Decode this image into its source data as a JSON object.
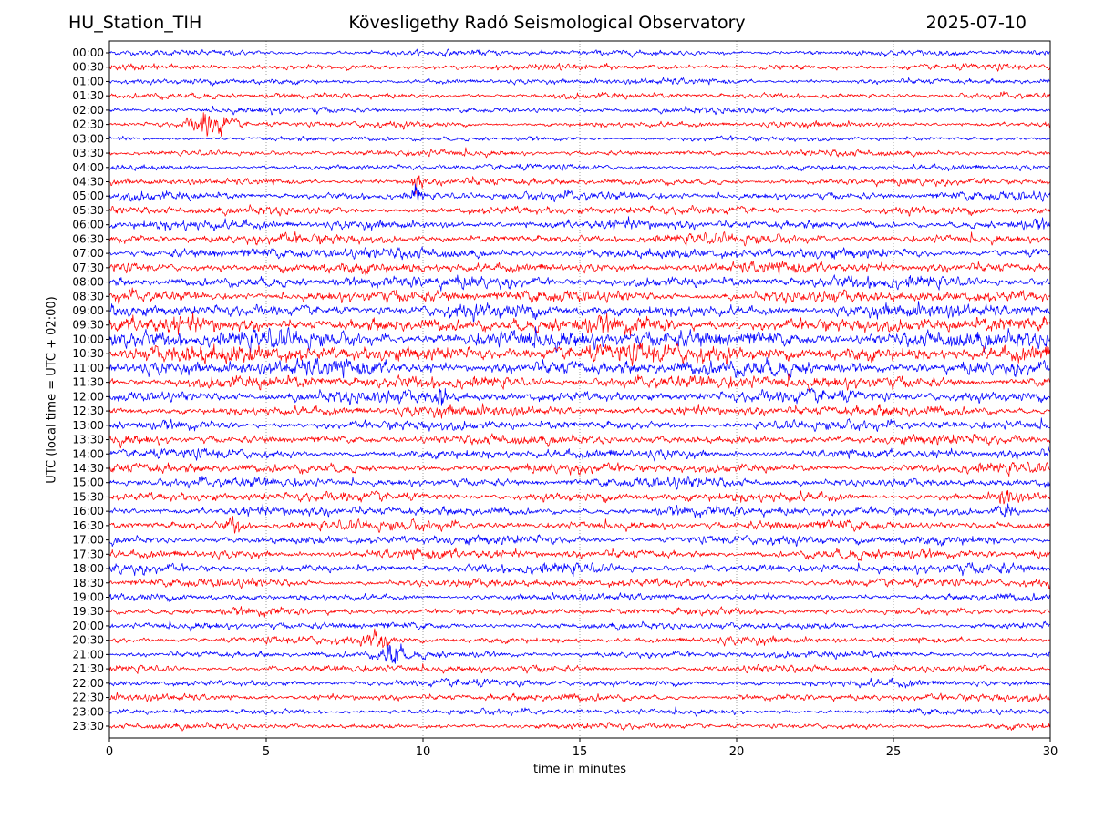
{
  "header": {
    "station": "HU_Station_TIH",
    "observatory": "Kövesligethy Radó Seismological Observatory",
    "date": "2025-07-10"
  },
  "chart_data": {
    "type": "line",
    "title": "Kövesligethy Radó Seismological Observatory",
    "xlabel": "time in minutes",
    "ylabel": "UTC (local time = UTC + 02:00)",
    "xlim": [
      0,
      30
    ],
    "xticks": [
      0,
      5,
      10,
      15,
      20,
      25,
      30
    ],
    "grid": true,
    "colors": [
      "#0000ff",
      "#ff0000"
    ],
    "rows": [
      "00:00",
      "00:30",
      "01:00",
      "01:30",
      "02:00",
      "02:30",
      "03:00",
      "03:30",
      "04:00",
      "04:30",
      "05:00",
      "05:30",
      "06:00",
      "06:30",
      "07:00",
      "07:30",
      "08:00",
      "08:30",
      "09:00",
      "09:30",
      "10:00",
      "10:30",
      "11:00",
      "11:30",
      "12:00",
      "12:30",
      "13:00",
      "13:30",
      "14:00",
      "14:30",
      "15:00",
      "15:30",
      "16:00",
      "16:30",
      "17:00",
      "17:30",
      "18:00",
      "18:30",
      "19:00",
      "19:30",
      "20:00",
      "20:30",
      "21:00",
      "21:30",
      "22:00",
      "22:30",
      "23:00",
      "23:30"
    ],
    "noise_level": [
      0.5,
      0.5,
      0.5,
      0.5,
      0.5,
      0.5,
      0.4,
      0.5,
      0.5,
      0.6,
      0.7,
      0.7,
      0.8,
      0.8,
      0.9,
      0.9,
      1.0,
      1.0,
      1.1,
      1.3,
      1.5,
      1.5,
      1.3,
      1.1,
      1.0,
      0.9,
      0.8,
      0.8,
      0.8,
      0.8,
      0.8,
      0.8,
      0.8,
      0.8,
      0.8,
      0.8,
      0.8,
      0.7,
      0.6,
      0.6,
      0.6,
      0.6,
      0.6,
      0.6,
      0.6,
      0.6,
      0.5,
      0.5
    ],
    "events": [
      {
        "row": "02:30",
        "minute": 3.2,
        "amplitude": 2.2,
        "duration": 1.8
      },
      {
        "row": "04:30",
        "minute": 9.8,
        "amplitude": 2.6,
        "duration": 0.4
      },
      {
        "row": "05:00",
        "minute": 9.8,
        "amplitude": 1.8,
        "duration": 0.4
      },
      {
        "row": "12:00",
        "minute": 10.6,
        "amplitude": 1.4,
        "duration": 0.6
      },
      {
        "row": "15:30",
        "minute": 28.6,
        "amplitude": 1.2,
        "duration": 0.8
      },
      {
        "row": "16:00",
        "minute": 28.6,
        "amplitude": 1.2,
        "duration": 0.8
      },
      {
        "row": "16:30",
        "minute": 4.0,
        "amplitude": 1.2,
        "duration": 0.8
      },
      {
        "row": "20:30",
        "minute": 8.6,
        "amplitude": 1.6,
        "duration": 1.0
      },
      {
        "row": "21:00",
        "minute": 9.0,
        "amplitude": 2.4,
        "duration": 0.8
      }
    ]
  }
}
